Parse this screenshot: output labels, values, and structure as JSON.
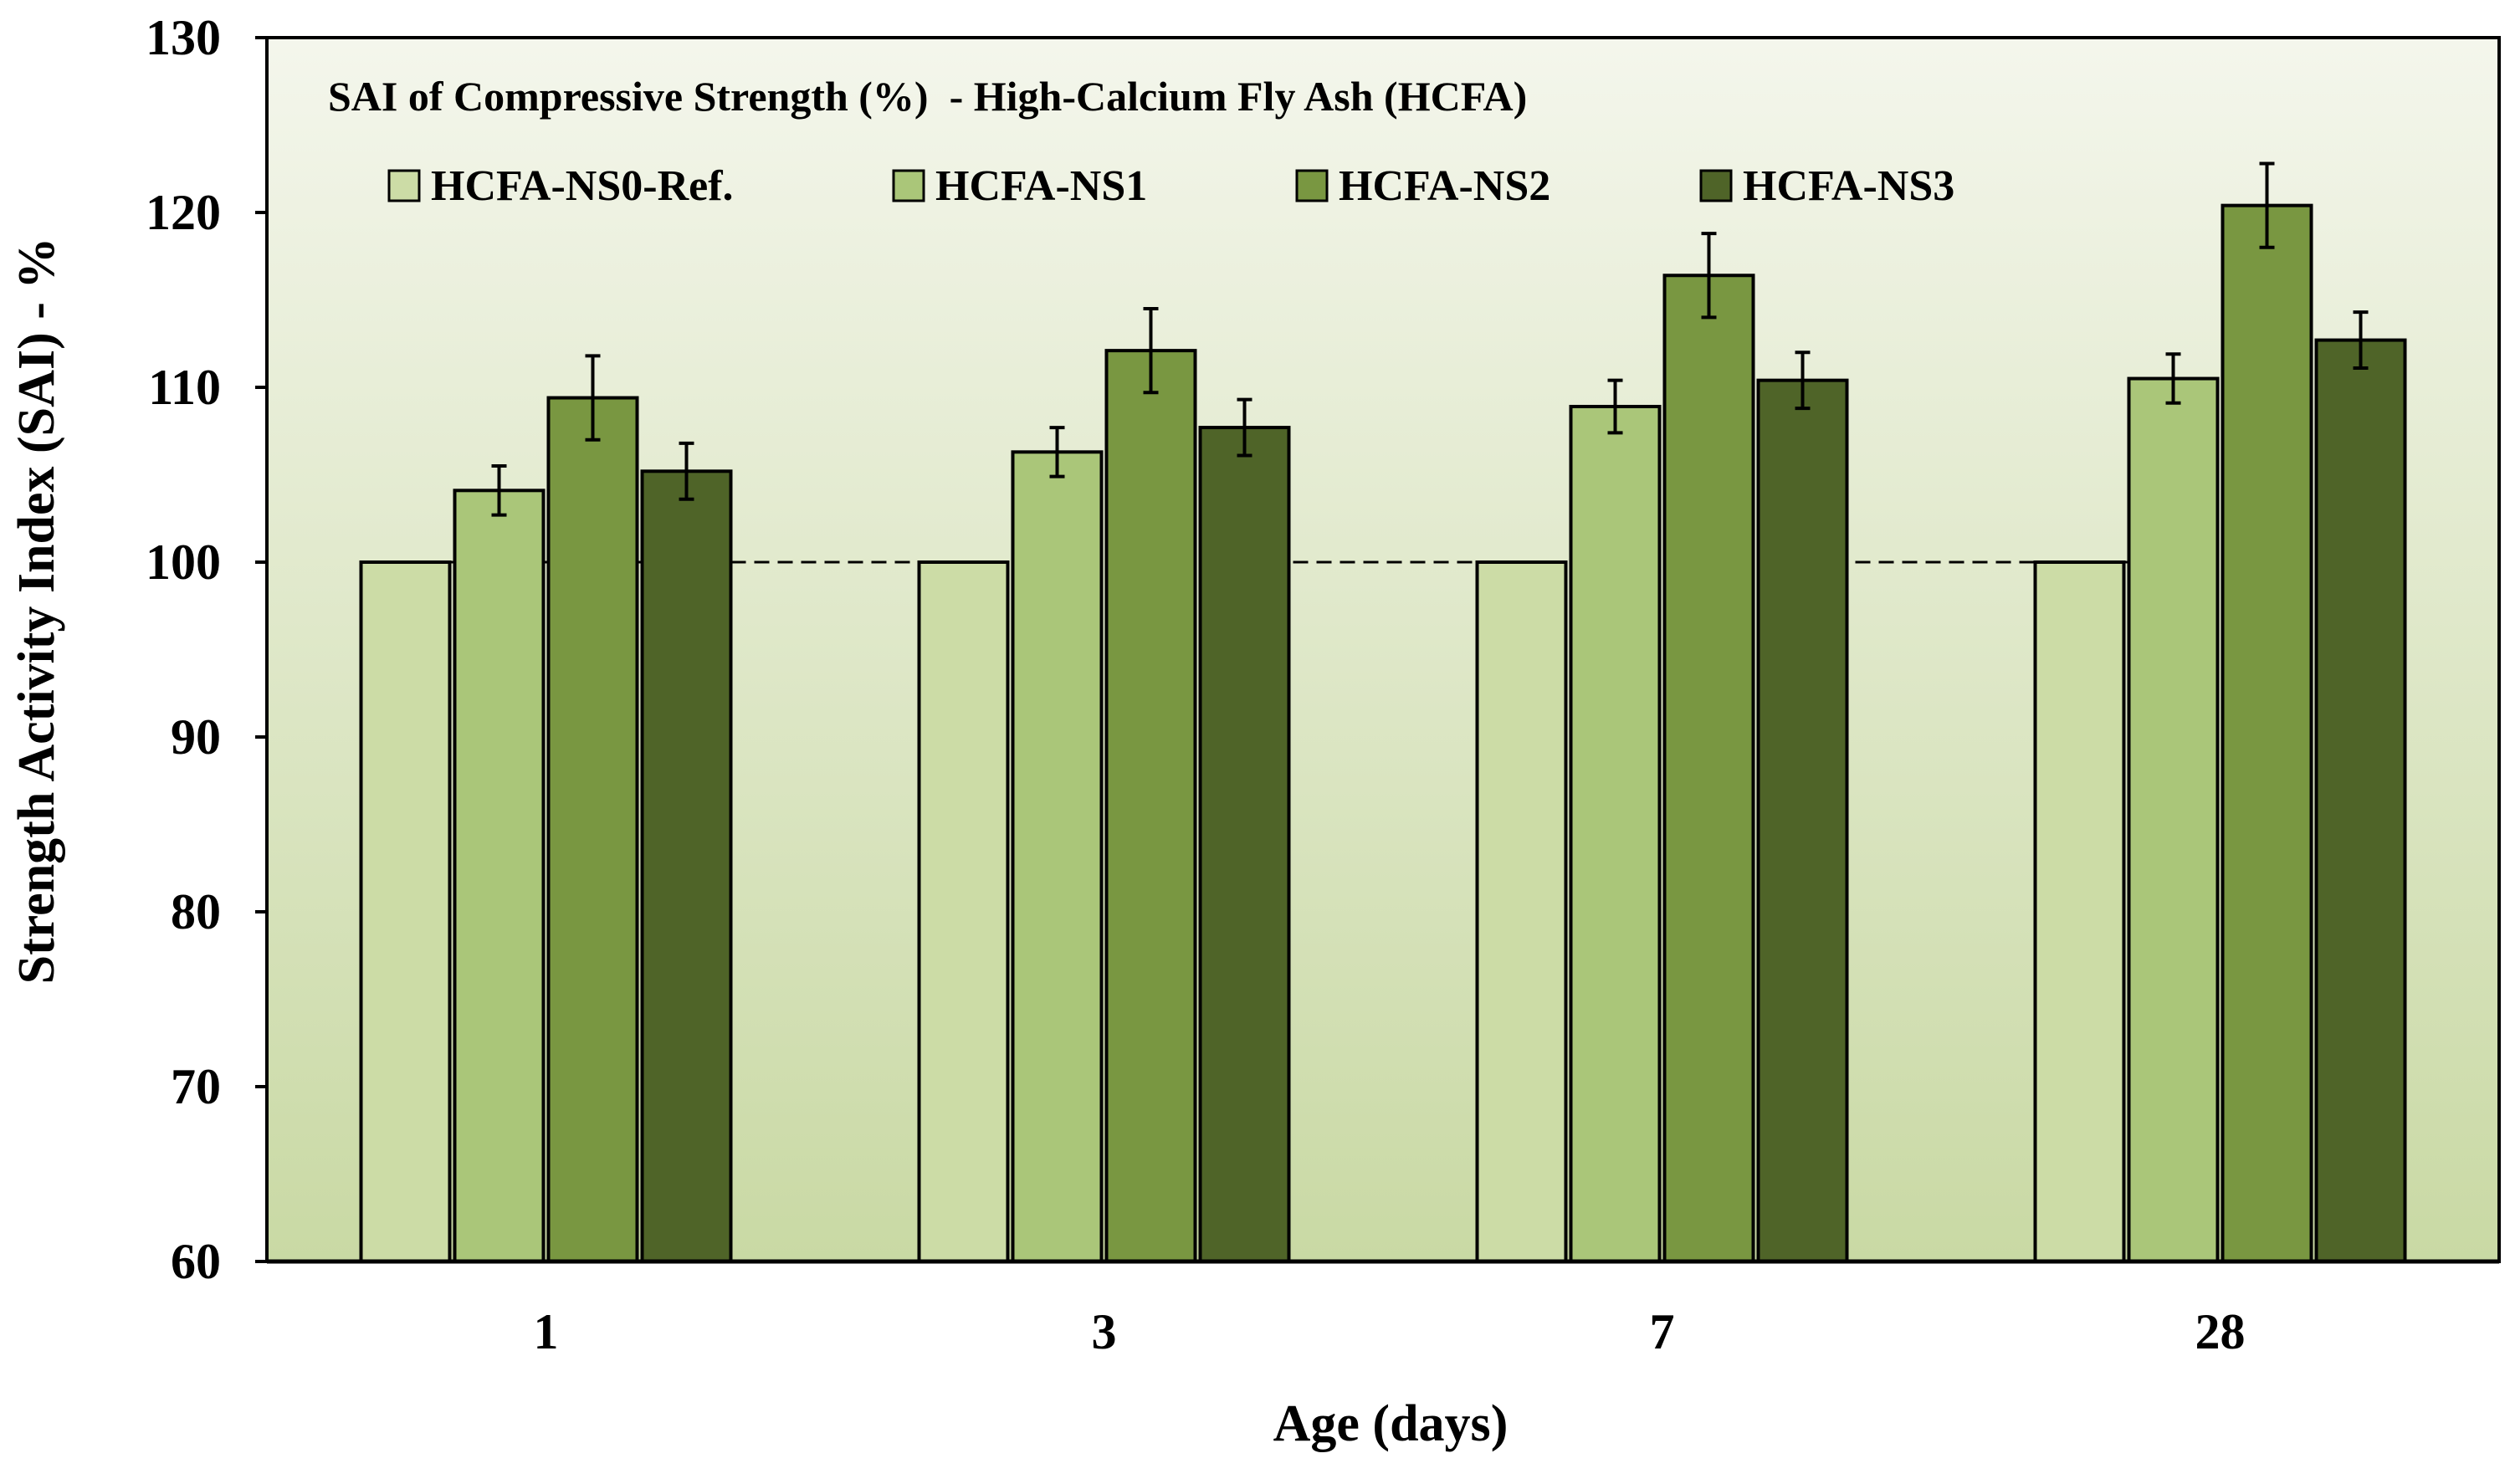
{
  "chart_data": {
    "type": "bar",
    "title": "SAI of Compressive Strength (%)  - High-Calcium Fly Ash (HCFA)",
    "xlabel": "Age (days)",
    "ylabel": "Strength Activity Index (SAI) - %",
    "categories": [
      "1",
      "3",
      "7",
      "28"
    ],
    "ylim": [
      60,
      130
    ],
    "yticks": [
      "60",
      "70",
      "80",
      "90",
      "100",
      "110",
      "120",
      "130"
    ],
    "grid": false,
    "legend_position": "top-left",
    "reference_line": {
      "value": 100,
      "style": "dashed"
    },
    "series": [
      {
        "name": "HCFA-NS0-Ref.",
        "color": "#ccdca6",
        "values": [
          100,
          100,
          100,
          100
        ],
        "errors": [
          0,
          0,
          0,
          0
        ]
      },
      {
        "name": "HCFA-NS1",
        "color": "#aac679",
        "values": [
          104.1,
          106.3,
          108.9,
          110.5
        ],
        "errors": [
          1.4,
          1.4,
          1.5,
          1.4
        ]
      },
      {
        "name": "HCFA-NS2",
        "color": "#799741",
        "values": [
          109.4,
          112.1,
          116.4,
          120.4
        ],
        "errors": [
          2.4,
          2.4,
          2.4,
          2.4
        ]
      },
      {
        "name": "HCFA-NS3",
        "color": "#4f6428",
        "values": [
          105.2,
          107.7,
          110.4,
          112.7
        ],
        "errors": [
          1.6,
          1.6,
          1.6,
          1.6
        ]
      }
    ],
    "plot_background": [
      "#f4f6ec",
      "#c9d9a4"
    ]
  }
}
